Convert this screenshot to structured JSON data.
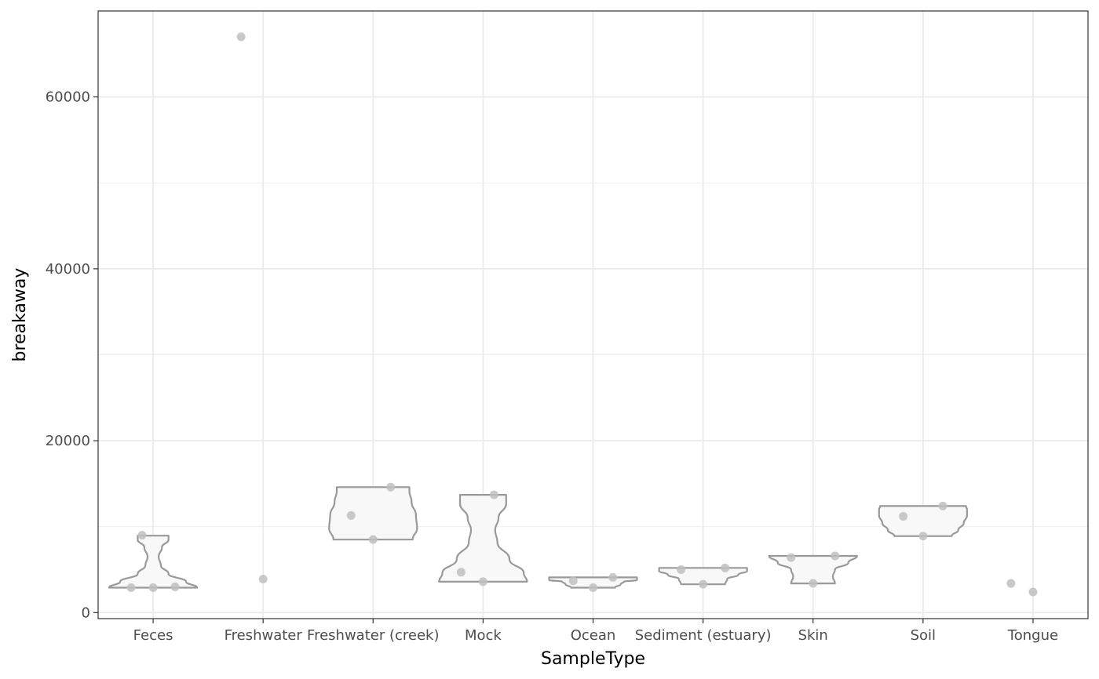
{
  "chart_data": {
    "type": "violin",
    "xlabel": "SampleType",
    "ylabel": "breakaway",
    "ylim": [
      -700,
      70000
    ],
    "yticks": [
      0,
      20000,
      40000,
      60000
    ],
    "grid": true,
    "colors": {
      "violin_stroke": "#999999",
      "violin_fill": "#f8f8f8",
      "point": "#bfbfbf",
      "grid": "#ebebeb",
      "panel_border": "#333333"
    },
    "categories": [
      "Feces",
      "Freshwater",
      "Freshwater (creek)",
      "Mock",
      "Ocean",
      "Sediment (estuary)",
      "Skin",
      "Soil",
      "Tongue"
    ],
    "groups": [
      {
        "category": "Feces",
        "points": [
          {
            "dx": -0.1,
            "y": 9000
          },
          {
            "dx": -0.2,
            "y": 2900
          },
          {
            "dx": 0.0,
            "y": 2900
          },
          {
            "dx": 0.2,
            "y": 3000
          }
        ]
      },
      {
        "category": "Freshwater",
        "points": [
          {
            "dx": -0.2,
            "y": 67000
          },
          {
            "dx": 0.0,
            "y": 3900
          }
        ]
      },
      {
        "category": "Freshwater (creek)",
        "points": [
          {
            "dx": -0.2,
            "y": 11300
          },
          {
            "dx": 0.0,
            "y": 8500
          },
          {
            "dx": 0.16,
            "y": 14600
          }
        ]
      },
      {
        "category": "Mock",
        "points": [
          {
            "dx": -0.2,
            "y": 4700
          },
          {
            "dx": 0.0,
            "y": 3600
          },
          {
            "dx": 0.1,
            "y": 13700
          }
        ]
      },
      {
        "category": "Ocean",
        "points": [
          {
            "dx": -0.18,
            "y": 3700
          },
          {
            "dx": 0.0,
            "y": 2900
          },
          {
            "dx": 0.18,
            "y": 4100
          }
        ]
      },
      {
        "category": "Sediment (estuary)",
        "points": [
          {
            "dx": -0.2,
            "y": 5000
          },
          {
            "dx": 0.0,
            "y": 3300
          },
          {
            "dx": 0.2,
            "y": 5200
          }
        ]
      },
      {
        "category": "Skin",
        "points": [
          {
            "dx": -0.2,
            "y": 6400
          },
          {
            "dx": 0.0,
            "y": 3400
          },
          {
            "dx": 0.2,
            "y": 6600
          }
        ]
      },
      {
        "category": "Soil",
        "points": [
          {
            "dx": -0.18,
            "y": 11200
          },
          {
            "dx": 0.0,
            "y": 8900
          },
          {
            "dx": 0.18,
            "y": 12400
          }
        ]
      },
      {
        "category": "Tongue",
        "points": [
          {
            "dx": -0.2,
            "y": 3400
          },
          {
            "dx": 0.0,
            "y": 2400
          }
        ]
      }
    ],
    "violins": [
      {
        "category": "Feces",
        "profile": [
          {
            "y": 2900,
            "w": 0.4
          },
          {
            "y": 3600,
            "w": 0.3
          },
          {
            "y": 4500,
            "w": 0.14
          },
          {
            "y": 5500,
            "w": 0.07
          },
          {
            "y": 6500,
            "w": 0.05
          },
          {
            "y": 7600,
            "w": 0.08
          },
          {
            "y": 8500,
            "w": 0.14
          },
          {
            "y": 8950,
            "w": 0.14
          }
        ]
      },
      {
        "category": "Freshwater (creek)",
        "profile": [
          {
            "y": 8500,
            "w": 0.36
          },
          {
            "y": 9800,
            "w": 0.4
          },
          {
            "y": 11300,
            "w": 0.39
          },
          {
            "y": 12900,
            "w": 0.35
          },
          {
            "y": 14100,
            "w": 0.33
          },
          {
            "y": 14600,
            "w": 0.33
          }
        ]
      },
      {
        "category": "Mock",
        "profile": [
          {
            "y": 3600,
            "w": 0.4
          },
          {
            "y": 4600,
            "w": 0.37
          },
          {
            "y": 6200,
            "w": 0.24
          },
          {
            "y": 8200,
            "w": 0.13
          },
          {
            "y": 9600,
            "w": 0.11
          },
          {
            "y": 11000,
            "w": 0.14
          },
          {
            "y": 12700,
            "w": 0.21
          },
          {
            "y": 13700,
            "w": 0.21
          }
        ]
      },
      {
        "category": "Ocean",
        "profile": [
          {
            "y": 2900,
            "w": 0.2
          },
          {
            "y": 3300,
            "w": 0.25
          },
          {
            "y": 3600,
            "w": 0.28
          },
          {
            "y": 3800,
            "w": 0.4
          },
          {
            "y": 4100,
            "w": 0.4
          }
        ]
      },
      {
        "category": "Sediment (estuary)",
        "profile": [
          {
            "y": 3300,
            "w": 0.2
          },
          {
            "y": 3900,
            "w": 0.22
          },
          {
            "y": 4400,
            "w": 0.32
          },
          {
            "y": 4850,
            "w": 0.4
          },
          {
            "y": 5200,
            "w": 0.4
          }
        ]
      },
      {
        "category": "Skin",
        "profile": [
          {
            "y": 3400,
            "w": 0.2
          },
          {
            "y": 4200,
            "w": 0.18
          },
          {
            "y": 5000,
            "w": 0.2
          },
          {
            "y": 5800,
            "w": 0.32
          },
          {
            "y": 6600,
            "w": 0.4
          }
        ]
      },
      {
        "category": "Soil",
        "profile": [
          {
            "y": 8900,
            "w": 0.26
          },
          {
            "y": 9600,
            "w": 0.32
          },
          {
            "y": 10400,
            "w": 0.37
          },
          {
            "y": 11300,
            "w": 0.4
          },
          {
            "y": 12000,
            "w": 0.4
          },
          {
            "y": 12400,
            "w": 0.39
          }
        ]
      }
    ]
  }
}
